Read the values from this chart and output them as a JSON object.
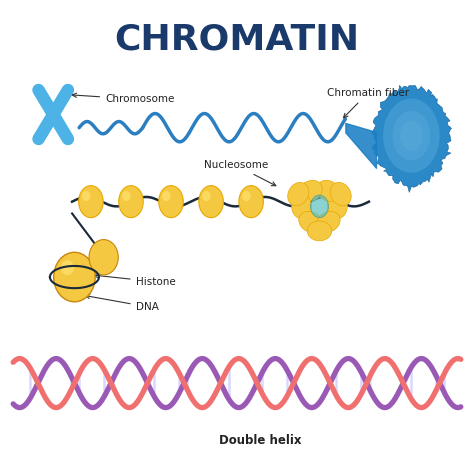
{
  "title": "CHROMATIN",
  "title_color": "#1a3a6b",
  "title_fontsize": 26,
  "bg_color": "#ffffff",
  "labels": {
    "chromosome": "Chromosome",
    "chromatin_fiber": "Chromatin fiber",
    "nucleosome": "Nucleosome",
    "histone": "Histone",
    "dna": "DNA",
    "double_helix": "Double helix"
  },
  "colors": {
    "chromosome_blue": "#4db3e6",
    "chromosome_dark": "#1a7ab5",
    "chromatin_wave": "#2b7fc1",
    "chromatin_blob": "#1a7fc4",
    "chromatin_blob_light": "#7ac5e8",
    "nucleosome_yellow": "#f5c842",
    "nucleosome_dark": "#e6a800",
    "nucleosome_highlight": "#ffe97a",
    "nucleosome_teal": "#5abfbf",
    "dna_pink": "#f07070",
    "dna_purple": "#9b59b6",
    "dna_rung": "#ccccff",
    "dna_wrap": "#1a2a3a",
    "label_color": "#222222",
    "arrow_color": "#333333"
  }
}
